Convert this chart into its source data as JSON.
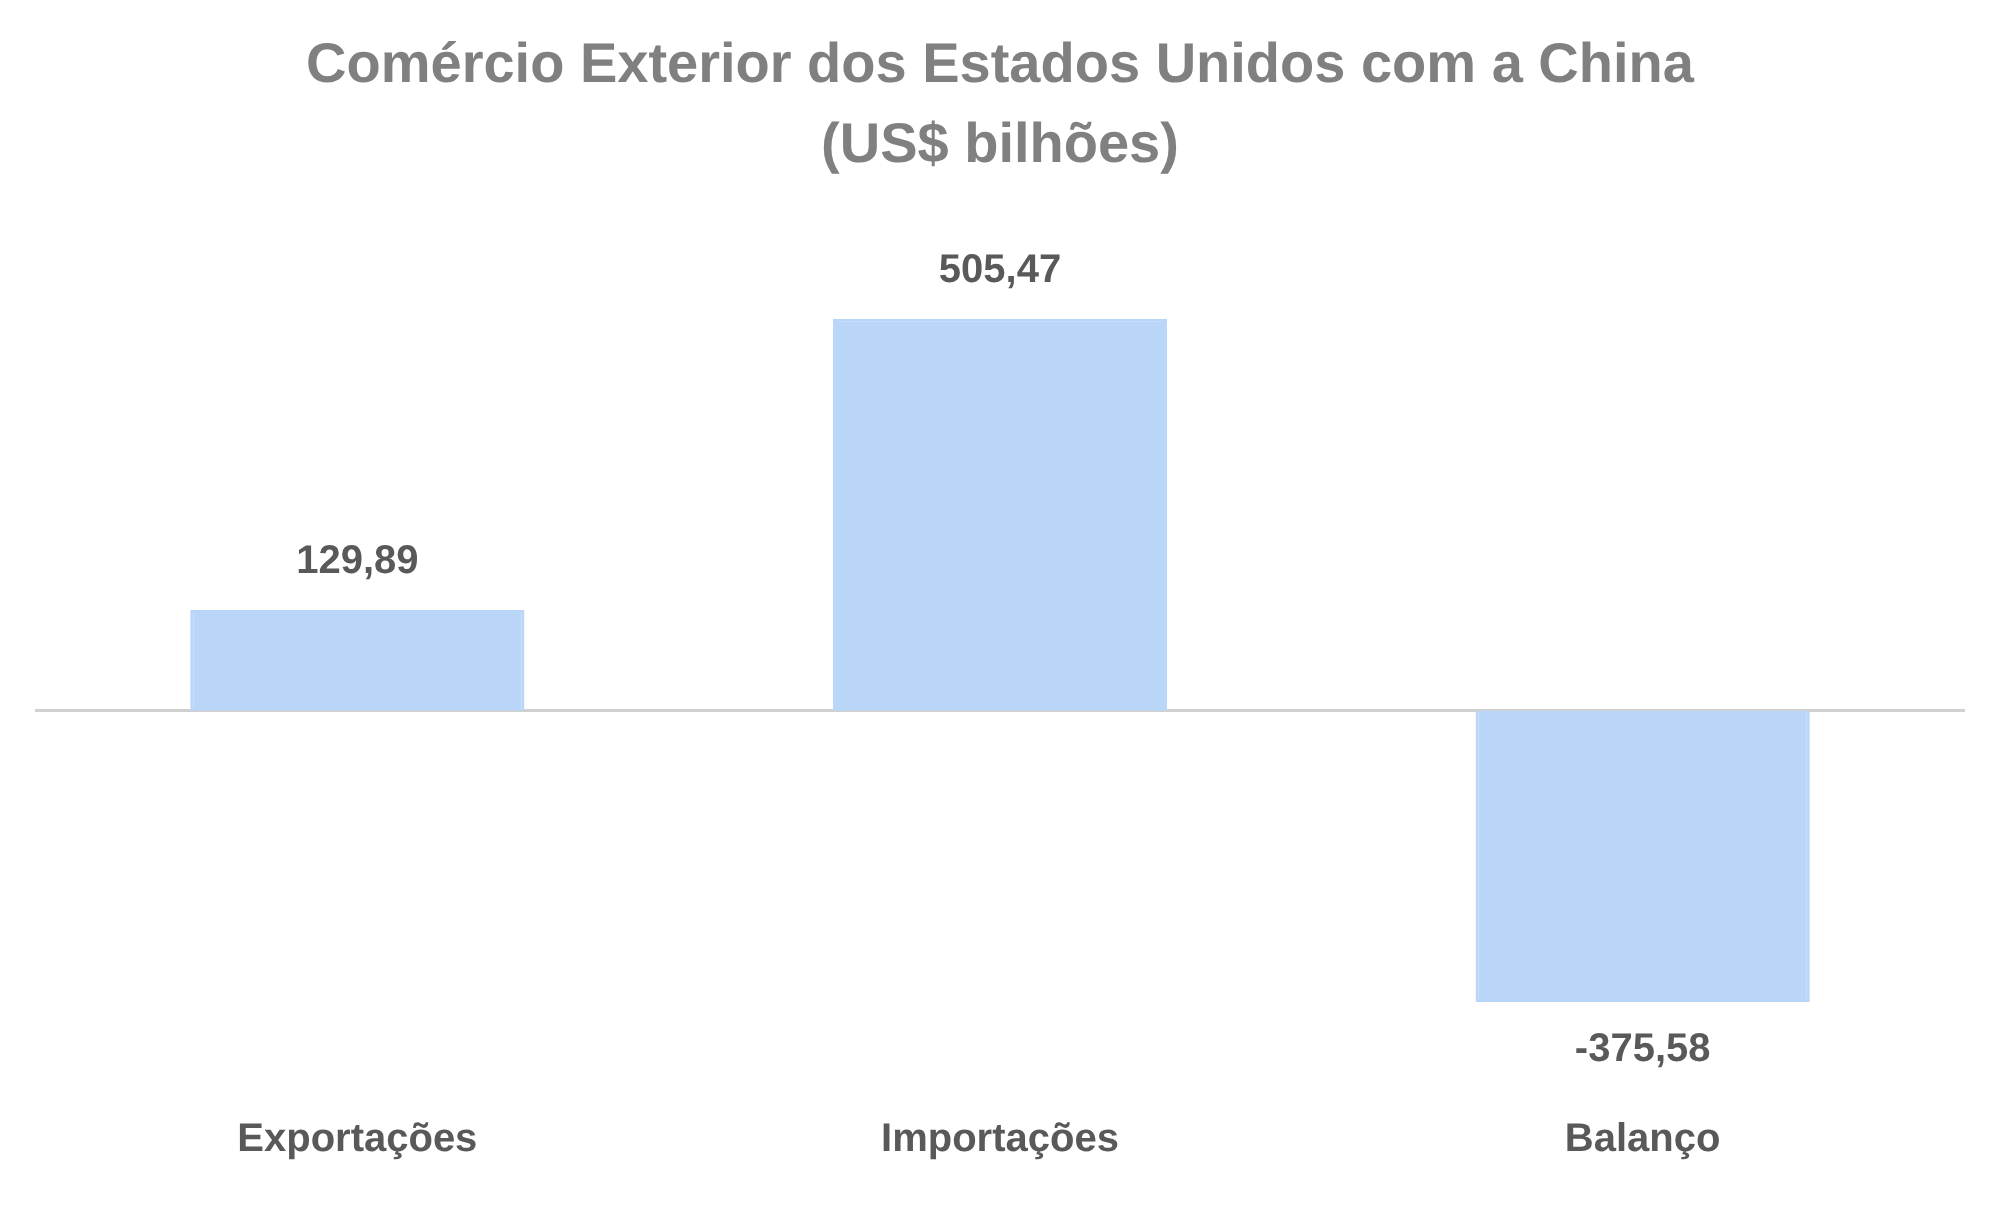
{
  "chart_data": {
    "type": "bar",
    "title": "Comércio Exterior dos Estados Unidos com a China (US$ bilhões)",
    "categories": [
      "Exportações",
      "Importações",
      "Balanço"
    ],
    "values": [
      129.89,
      505.47,
      -375.58
    ],
    "value_labels": [
      "129,89",
      "505,47",
      "-375,58"
    ],
    "color": "#b9d6f8",
    "grid": false,
    "legend": false
  }
}
